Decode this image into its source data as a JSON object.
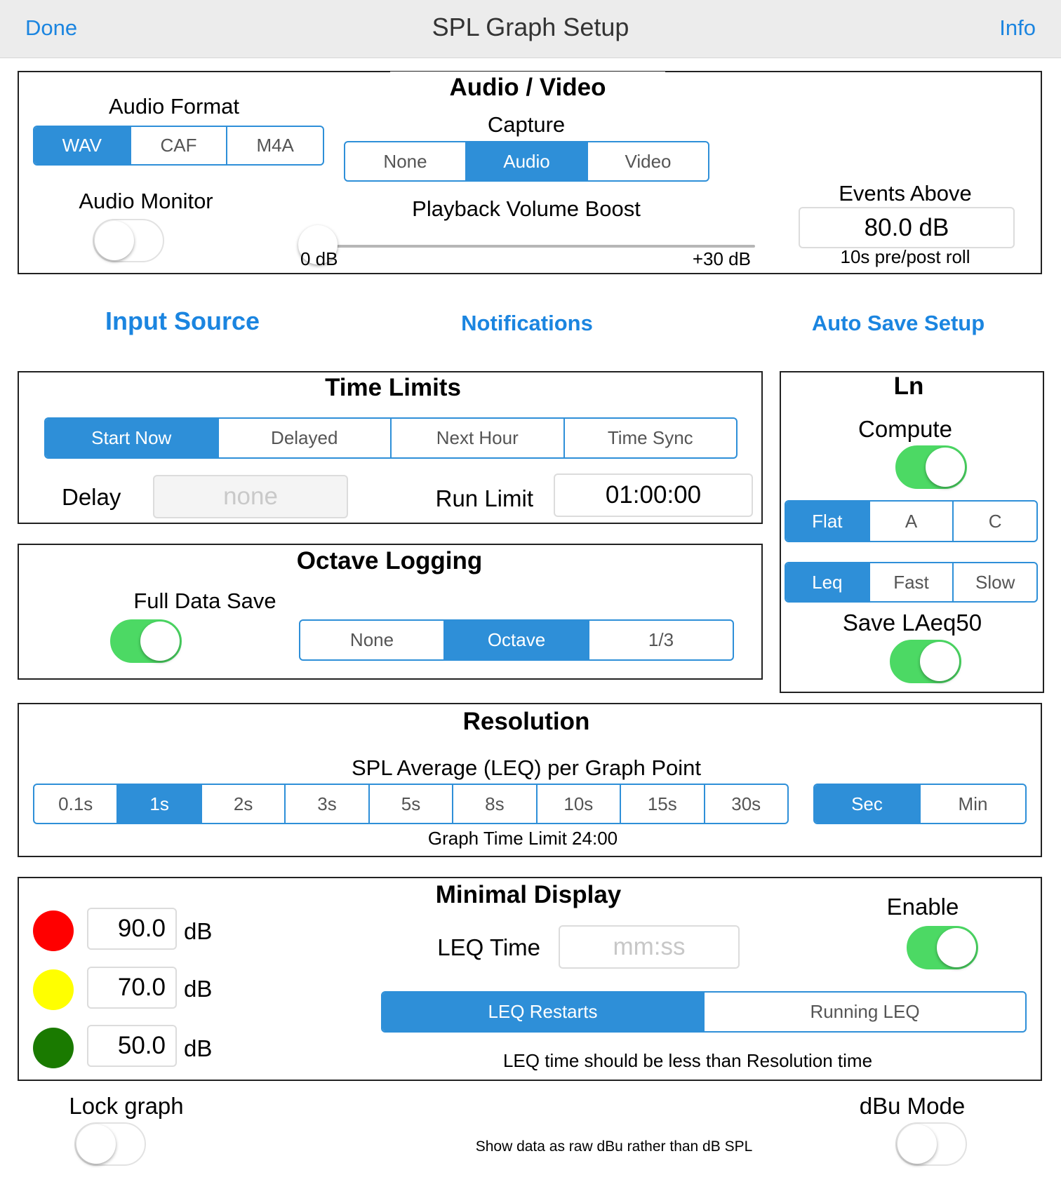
{
  "nav": {
    "title": "SPL Graph Setup",
    "done": "Done",
    "info": "Info"
  },
  "audio_video": {
    "title": "Audio / Video",
    "audio_format": {
      "label": "Audio Format",
      "options": [
        "WAV",
        "CAF",
        "M4A"
      ],
      "selected": "WAV"
    },
    "capture": {
      "label": "Capture",
      "options": [
        "None",
        "Audio",
        "Video"
      ],
      "selected": "Audio"
    },
    "audio_monitor": {
      "label": "Audio Monitor",
      "on": false
    },
    "playback_boost": {
      "label": "Playback Volume Boost",
      "min_label": "0 dB",
      "max_label": "+30 dB",
      "value": 0
    },
    "events_above": {
      "label": "Events Above",
      "value": "80.0 dB",
      "note": "10s pre/post roll"
    }
  },
  "links": {
    "input_source": "Input Source",
    "notifications": "Notifications",
    "auto_save": "Auto Save Setup"
  },
  "time_limits": {
    "title": "Time Limits",
    "start_options": [
      "Start Now",
      "Delayed",
      "Next Hour",
      "Time Sync"
    ],
    "selected": "Start Now",
    "delay_label": "Delay",
    "delay_placeholder": "none",
    "run_limit_label": "Run Limit",
    "run_limit_value": "01:00:00"
  },
  "ln": {
    "title": "Ln",
    "compute_label": "Compute",
    "compute_on": true,
    "weighting": [
      "Flat",
      "A",
      "C"
    ],
    "weighting_selected": "Flat",
    "response": [
      "Leq",
      "Fast",
      "Slow"
    ],
    "response_selected": "Leq",
    "save_label": "Save LAeq50",
    "save_on": true
  },
  "octave_logging": {
    "title": "Octave Logging",
    "full_data_label": "Full Data Save",
    "full_data_on": true,
    "options": [
      "None",
      "Octave",
      "1/3"
    ],
    "selected": "Octave"
  },
  "resolution": {
    "title": "Resolution",
    "subtitle": "SPL Average (LEQ) per Graph Point",
    "options": [
      "0.1s",
      "1s",
      "2s",
      "3s",
      "5s",
      "8s",
      "10s",
      "15s",
      "30s"
    ],
    "selected": "1s",
    "units": [
      "Sec",
      "Min"
    ],
    "units_selected": "Sec",
    "graph_limit": "Graph Time Limit 24:00"
  },
  "minimal_display": {
    "title": "Minimal Display",
    "thresholds": [
      {
        "color": "#ff0000",
        "value": "90.0",
        "unit": "dB"
      },
      {
        "color": "#ffff00",
        "value": "70.0",
        "unit": "dB"
      },
      {
        "color": "#1a7a00",
        "value": "50.0",
        "unit": "dB"
      }
    ],
    "leq_time_label": "LEQ Time",
    "leq_time_placeholder": "mm:ss",
    "enable_label": "Enable",
    "enable_on": true,
    "modes": [
      "LEQ Restarts",
      "Running LEQ"
    ],
    "mode_selected": "LEQ Restarts",
    "note": "LEQ time should be less than Resolution time"
  },
  "footer": {
    "lock_graph_label": "Lock graph",
    "lock_graph_on": false,
    "dbu_label": "dBu Mode",
    "dbu_on": false,
    "dbu_note": "Show data as raw dBu rather than dB SPL"
  },
  "colors": {
    "accent": "#2e8fd8",
    "link": "#1b85e0",
    "switch_on": "#4cd964"
  }
}
